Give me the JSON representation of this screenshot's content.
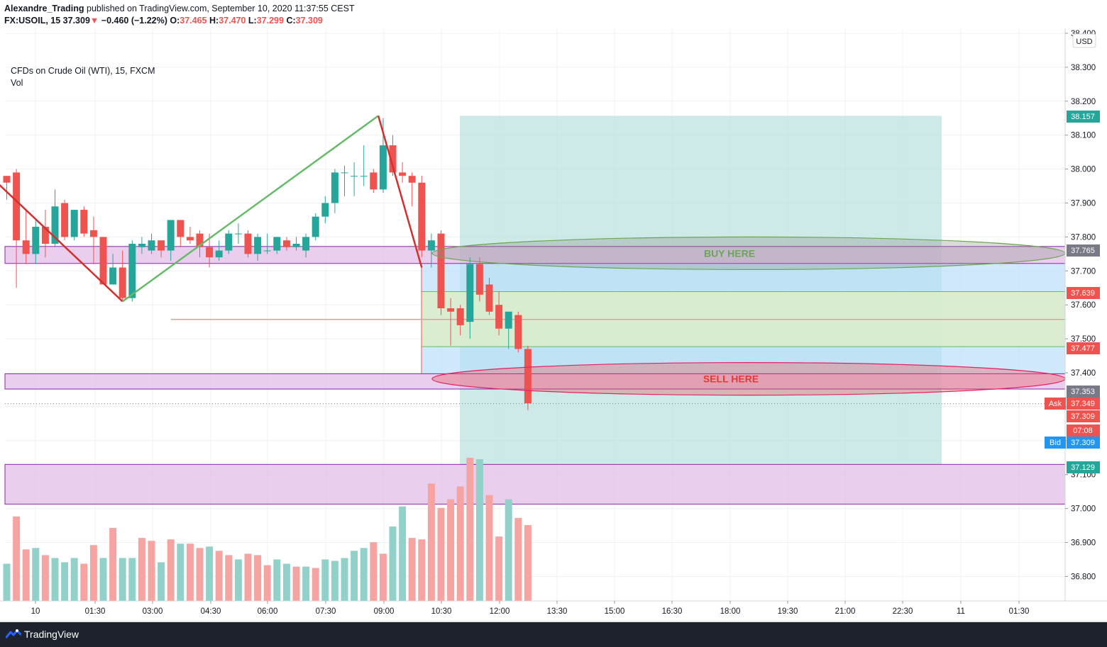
{
  "header": {
    "author": "Alexandre_Trading",
    "published": "published on TradingView.com, September 10, 2020 11:37:55 CEST",
    "symbol": "FX:USOIL, 15",
    "last": "37.309",
    "change": "−0.460 (−1.22%)",
    "o_label": "O:",
    "o": "37.465",
    "h_label": "H:",
    "h": "37.470",
    "l_label": "L:",
    "l": "37.299",
    "c_label": "C:",
    "c": "37.309"
  },
  "legend": {
    "title": "CFDs on Crude Oil (WTI), 15, FXCM",
    "vol": "Vol"
  },
  "footer": {
    "brand": "TradingView"
  },
  "annotations": {
    "buy": "BUY HERE",
    "sell": "SELL HERE"
  },
  "colors": {
    "up": "#26a69a",
    "down": "#ef5350",
    "vol_up": "#91d1c9",
    "vol_down": "#f6a4a2",
    "zone": "#e1bee7",
    "zone_border": "#8e24aa",
    "target": "#b2dfdb",
    "stop": "#bbdefb",
    "green_fill": "#dcedc8",
    "trend_up": "#66bb6a",
    "trend_down": "#d32f2f",
    "buy_text": "#6aa84f",
    "sell_text": "#e53935",
    "label_green": "#26a69a",
    "label_red": "#ef5350",
    "label_gray": "#787b86",
    "label_blue": "#2196f3"
  },
  "chart_data": {
    "type": "candlestick",
    "title": "CFDs on Crude Oil (WTI), 15, FXCM",
    "currency": "USD",
    "ylim": [
      36.73,
      38.42
    ],
    "y_ticks": [
      "38.400",
      "38.300",
      "38.200",
      "38.100",
      "38.000",
      "37.900",
      "37.800",
      "37.700",
      "37.600",
      "37.500",
      "37.400",
      "37.300",
      "37.200",
      "37.100",
      "37.000",
      "36.900",
      "36.800"
    ],
    "x_ticks": [
      "10",
      "01:30",
      "03:00",
      "04:30",
      "06:00",
      "07:30",
      "09:00",
      "10:30",
      "12:00",
      "13:30",
      "15:00",
      "16:30",
      "18:00",
      "19:30",
      "21:00",
      "22:30",
      "11",
      "01:30"
    ],
    "candles": [
      [
        37.98,
        37.98,
        37.91,
        37.96
      ],
      [
        37.99,
        38.0,
        37.65,
        37.79
      ],
      [
        37.79,
        37.88,
        37.72,
        37.75
      ],
      [
        37.75,
        37.85,
        37.72,
        37.83
      ],
      [
        37.83,
        37.88,
        37.74,
        37.78
      ],
      [
        37.78,
        37.94,
        37.77,
        37.89
      ],
      [
        37.9,
        37.91,
        37.79,
        37.8
      ],
      [
        37.8,
        37.88,
        37.79,
        37.88
      ],
      [
        37.88,
        37.89,
        37.8,
        37.81
      ],
      [
        37.82,
        37.86,
        37.72,
        37.8
      ],
      [
        37.8,
        37.8,
        37.66,
        37.66
      ],
      [
        37.66,
        37.75,
        37.66,
        37.71
      ],
      [
        37.71,
        37.76,
        37.61,
        37.62
      ],
      [
        37.62,
        37.79,
        37.61,
        37.78
      ],
      [
        37.77,
        37.8,
        37.75,
        37.78
      ],
      [
        37.76,
        37.81,
        37.75,
        37.79
      ],
      [
        37.79,
        37.79,
        37.74,
        37.76
      ],
      [
        37.76,
        37.85,
        37.73,
        37.85
      ],
      [
        37.85,
        37.85,
        37.77,
        37.8
      ],
      [
        37.8,
        37.83,
        37.78,
        37.79
      ],
      [
        37.81,
        37.82,
        37.74,
        37.77
      ],
      [
        37.77,
        37.81,
        37.71,
        37.74
      ],
      [
        37.74,
        37.79,
        37.73,
        37.76
      ],
      [
        37.76,
        37.82,
        37.75,
        37.81
      ],
      [
        37.81,
        37.84,
        37.78,
        37.81
      ],
      [
        37.81,
        37.82,
        37.74,
        37.75
      ],
      [
        37.75,
        37.81,
        37.73,
        37.8
      ],
      [
        37.76,
        37.81,
        37.75,
        37.76
      ],
      [
        37.76,
        37.8,
        37.75,
        37.8
      ],
      [
        37.79,
        37.8,
        37.76,
        37.77
      ],
      [
        37.77,
        37.8,
        37.76,
        37.78
      ],
      [
        37.76,
        37.81,
        37.74,
        37.8
      ],
      [
        37.8,
        37.87,
        37.79,
        37.86
      ],
      [
        37.86,
        37.92,
        37.84,
        37.9
      ],
      [
        37.9,
        38.0,
        37.87,
        37.99
      ],
      [
        37.99,
        38.01,
        37.92,
        37.99
      ],
      [
        37.98,
        38.02,
        37.92,
        37.98
      ],
      [
        37.98,
        38.07,
        37.95,
        37.98
      ],
      [
        37.99,
        38.0,
        37.93,
        37.94
      ],
      [
        37.94,
        38.15,
        37.93,
        38.07
      ],
      [
        38.07,
        38.1,
        37.98,
        37.99
      ],
      [
        37.99,
        38.02,
        37.96,
        37.98
      ],
      [
        37.98,
        37.99,
        37.89,
        37.96
      ],
      [
        37.96,
        37.98,
        37.74,
        37.76
      ],
      [
        37.76,
        37.81,
        37.71,
        37.79
      ],
      [
        37.81,
        37.82,
        37.57,
        37.59
      ],
      [
        37.59,
        37.62,
        37.48,
        37.58
      ],
      [
        37.59,
        37.6,
        37.51,
        37.54
      ],
      [
        37.55,
        37.74,
        37.5,
        37.72
      ],
      [
        37.72,
        37.74,
        37.61,
        37.63
      ],
      [
        37.66,
        37.68,
        37.57,
        37.58
      ],
      [
        37.6,
        37.64,
        37.51,
        37.53
      ],
      [
        37.53,
        37.58,
        37.47,
        37.58
      ],
      [
        37.57,
        37.58,
        37.46,
        37.47
      ],
      [
        37.47,
        37.48,
        37.29,
        37.31
      ]
    ],
    "volume": [
      {
        "v": 0.26,
        "up": true
      },
      {
        "v": 0.59,
        "up": false
      },
      {
        "v": 0.36,
        "up": false
      },
      {
        "v": 0.37,
        "up": true
      },
      {
        "v": 0.32,
        "up": false
      },
      {
        "v": 0.3,
        "up": true
      },
      {
        "v": 0.27,
        "up": true
      },
      {
        "v": 0.3,
        "up": true
      },
      {
        "v": 0.26,
        "up": false
      },
      {
        "v": 0.39,
        "up": false
      },
      {
        "v": 0.3,
        "up": true
      },
      {
        "v": 0.51,
        "up": false
      },
      {
        "v": 0.3,
        "up": true
      },
      {
        "v": 0.3,
        "up": true
      },
      {
        "v": 0.44,
        "up": false
      },
      {
        "v": 0.42,
        "up": false
      },
      {
        "v": 0.27,
        "up": true
      },
      {
        "v": 0.43,
        "up": false
      },
      {
        "v": 0.4,
        "up": true
      },
      {
        "v": 0.4,
        "up": false
      },
      {
        "v": 0.37,
        "up": false
      },
      {
        "v": 0.38,
        "up": true
      },
      {
        "v": 0.35,
        "up": false
      },
      {
        "v": 0.32,
        "up": false
      },
      {
        "v": 0.29,
        "up": true
      },
      {
        "v": 0.33,
        "up": false
      },
      {
        "v": 0.32,
        "up": false
      },
      {
        "v": 0.25,
        "up": false
      },
      {
        "v": 0.29,
        "up": true
      },
      {
        "v": 0.26,
        "up": true
      },
      {
        "v": 0.24,
        "up": false
      },
      {
        "v": 0.24,
        "up": true
      },
      {
        "v": 0.23,
        "up": false
      },
      {
        "v": 0.29,
        "up": true
      },
      {
        "v": 0.28,
        "up": true
      },
      {
        "v": 0.3,
        "up": true
      },
      {
        "v": 0.35,
        "up": true
      },
      {
        "v": 0.37,
        "up": true
      },
      {
        "v": 0.41,
        "up": false
      },
      {
        "v": 0.33,
        "up": false
      },
      {
        "v": 0.52,
        "up": true
      },
      {
        "v": 0.66,
        "up": true
      },
      {
        "v": 0.44,
        "up": false
      },
      {
        "v": 0.43,
        "up": false
      },
      {
        "v": 0.82,
        "up": false
      },
      {
        "v": 0.65,
        "up": false
      },
      {
        "v": 0.71,
        "up": false
      },
      {
        "v": 0.8,
        "up": false
      },
      {
        "v": 1.0,
        "up": false
      },
      {
        "v": 0.99,
        "up": true
      },
      {
        "v": 0.74,
        "up": false
      },
      {
        "v": 0.45,
        "up": false
      },
      {
        "v": 0.71,
        "up": true
      },
      {
        "v": 0.58,
        "up": false
      },
      {
        "v": 0.53,
        "up": false
      }
    ],
    "zones": [
      {
        "y1": 37.772,
        "y2": 37.722
      },
      {
        "y1": 37.397,
        "y2": 37.352
      },
      {
        "y1": 37.13,
        "y2": 37.013
      }
    ],
    "position": {
      "entry": 37.477,
      "target": 38.157,
      "stop_low": 37.129,
      "entry_alt": 37.639
    },
    "trendlines": [
      {
        "from": [
          -1,
          37.96
        ],
        "to": [
          12,
          37.61
        ],
        "color": "down"
      },
      {
        "from": [
          12,
          37.61
        ],
        "to": [
          38.5,
          38.157
        ],
        "color": "up"
      },
      {
        "from": [
          38.5,
          38.157
        ],
        "to": [
          43,
          37.71
        ],
        "color": "down"
      }
    ],
    "price_labels": [
      {
        "value": 38.157,
        "text": "38.157",
        "kind": "green"
      },
      {
        "value": 37.765,
        "text": "37.765",
        "kind": "gray"
      },
      {
        "value": 37.639,
        "text": "37.639",
        "kind": "red"
      },
      {
        "value": 37.477,
        "text": "37.477",
        "kind": "red"
      },
      {
        "value": 37.353,
        "text": "37.353",
        "kind": "gray"
      },
      {
        "value": 37.349,
        "text": "37.349",
        "kind": "red",
        "tag": "Ask"
      },
      {
        "value": 37.309,
        "text": "37.309",
        "kind": "red"
      },
      {
        "value": 37.309,
        "text": "07:08",
        "kind": "red"
      },
      {
        "value": 37.309,
        "text": "37.309",
        "kind": "blue",
        "tag": "Bid"
      },
      {
        "value": 37.129,
        "text": "37.129",
        "kind": "green"
      }
    ]
  }
}
